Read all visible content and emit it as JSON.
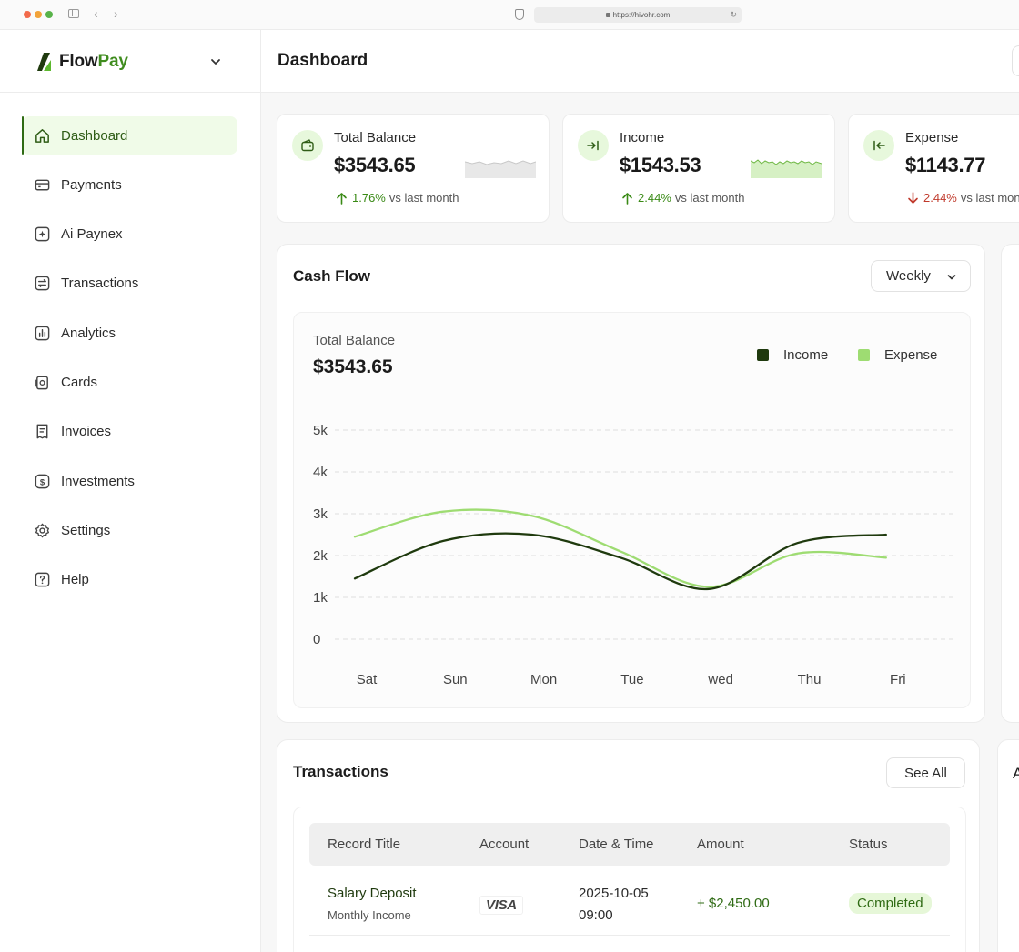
{
  "browser": {
    "url": "https://hivohr.com",
    "back_glyph": "‹",
    "forward_glyph": "›",
    "reload_glyph": "↻"
  },
  "brand": {
    "name_prefix": "Flow",
    "name_suffix": "Pay",
    "accent": "#3f8c1e"
  },
  "sidebar": {
    "items": [
      {
        "label": "Dashboard",
        "icon": "home-icon",
        "active": true
      },
      {
        "label": "Payments",
        "icon": "wallet-icon"
      },
      {
        "label": "Ai Paynex",
        "icon": "sparkle-icon"
      },
      {
        "label": "Transactions",
        "icon": "transfer-icon"
      },
      {
        "label": "Analytics",
        "icon": "analytics-icon"
      },
      {
        "label": "Cards",
        "icon": "cards-icon"
      },
      {
        "label": "Invoices",
        "icon": "invoice-icon"
      },
      {
        "label": "Investments",
        "icon": "investment-icon"
      },
      {
        "label": "Settings",
        "icon": "gear-icon"
      },
      {
        "label": "Help",
        "icon": "help-icon"
      }
    ]
  },
  "header": {
    "title": "Dashboard"
  },
  "stats": [
    {
      "label": "Total Balance",
      "value": "$3543.65",
      "change": "1.76%",
      "direction": "up",
      "suffix": "vs last month",
      "icon": "wallet-icon"
    },
    {
      "label": "Income",
      "value": "$1543.53",
      "change": "2.44%",
      "direction": "up",
      "suffix": "vs last month",
      "icon": "income-arrow-icon"
    },
    {
      "label": "Expense",
      "value": "$1143.77",
      "change": "2.44%",
      "direction": "down",
      "suffix": "vs last month",
      "icon": "expense-arrow-icon"
    }
  ],
  "cash_flow": {
    "title": "Cash Flow",
    "period": "Weekly",
    "total_label": "Total Balance",
    "total_value": "$3543.65"
  },
  "chart_data": {
    "type": "line",
    "title": "Cash Flow",
    "categories": [
      "Sat",
      "Sun",
      "Mon",
      "Tue",
      "wed",
      "Thu",
      "Fri"
    ],
    "y_ticks": [
      "0",
      "1k",
      "2k",
      "3k",
      "4k",
      "5k"
    ],
    "ylim": [
      0,
      5000
    ],
    "grid": true,
    "legend_position": "top-right",
    "series": [
      {
        "name": "Income",
        "color": "#1f3a0e",
        "values": [
          1450,
          2350,
          2500,
          1950,
          1200,
          2300,
          2500
        ]
      },
      {
        "name": "Expense",
        "color": "#9edc72",
        "values": [
          2450,
          3050,
          2950,
          2100,
          1250,
          2050,
          1950
        ]
      }
    ]
  },
  "transactions": {
    "title": "Transactions",
    "see_all": "See All",
    "columns": [
      "Record Title",
      "Account",
      "Date & Time",
      "Amount",
      "Status"
    ],
    "rows": [
      {
        "title": "Salary Deposit",
        "subtitle": "Monthly Income",
        "account": "VISA",
        "date": "2025-10-05",
        "time": "09:00",
        "amount": "+ $2,450.00",
        "status": "Completed"
      }
    ]
  },
  "right_panel": {
    "letter": "A"
  }
}
